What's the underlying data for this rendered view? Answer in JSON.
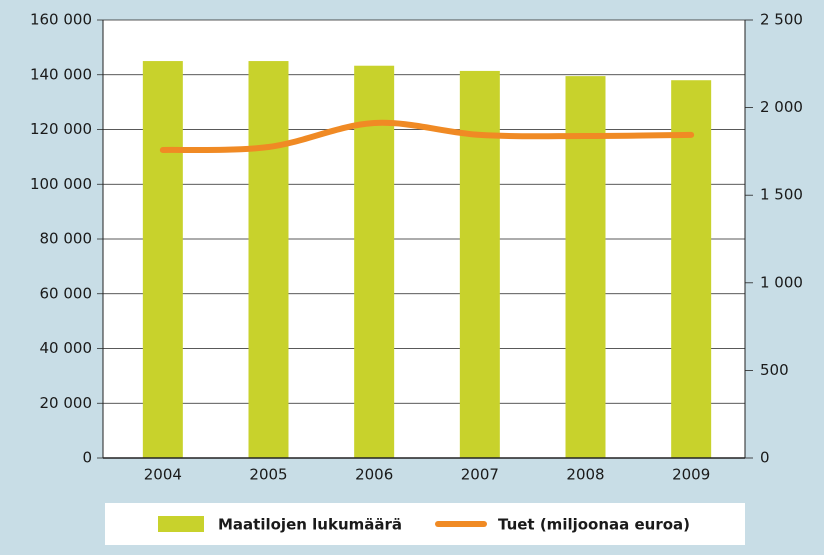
{
  "chart_data": {
    "type": "bar",
    "categories": [
      "2004",
      "2005",
      "2006",
      "2007",
      "2008",
      "2009"
    ],
    "series": [
      {
        "name": "Maatilojen lukumäärä",
        "type": "bar",
        "color": "#c8d22c",
        "values": [
          145000,
          145000,
          143300,
          141400,
          139500,
          138000
        ]
      },
      {
        "name": "Tuet (miljoonaa euroa)",
        "type": "line",
        "axis": "y2",
        "color": "#f08a24",
        "values": [
          1758,
          1775,
          1912,
          1844,
          1838,
          1844
        ]
      }
    ],
    "ylim": [
      0,
      160000
    ],
    "yticks": [
      0,
      {
        "value": 20000,
        "label": "20 000"
      },
      {
        "value": 40000,
        "label": "40 000"
      },
      {
        "value": 60000,
        "label": "60 000"
      },
      {
        "value": 80000,
        "label": "80 000"
      },
      {
        "value": 100000,
        "label": "100 000"
      },
      {
        "value": 120000,
        "label": "120 000"
      },
      {
        "value": 140000,
        "label": "140 000"
      },
      {
        "value": 160000,
        "label": "160 000"
      }
    ],
    "y2lim": [
      0,
      2500
    ],
    "y2ticks": [
      0,
      500,
      {
        "value": 1000,
        "label": "1 000"
      },
      {
        "value": 1500,
        "label": "1 500"
      },
      {
        "value": 2000,
        "label": "2 000"
      },
      {
        "value": 2500,
        "label": "2 500"
      }
    ],
    "grid": true,
    "legend": "bottom"
  }
}
